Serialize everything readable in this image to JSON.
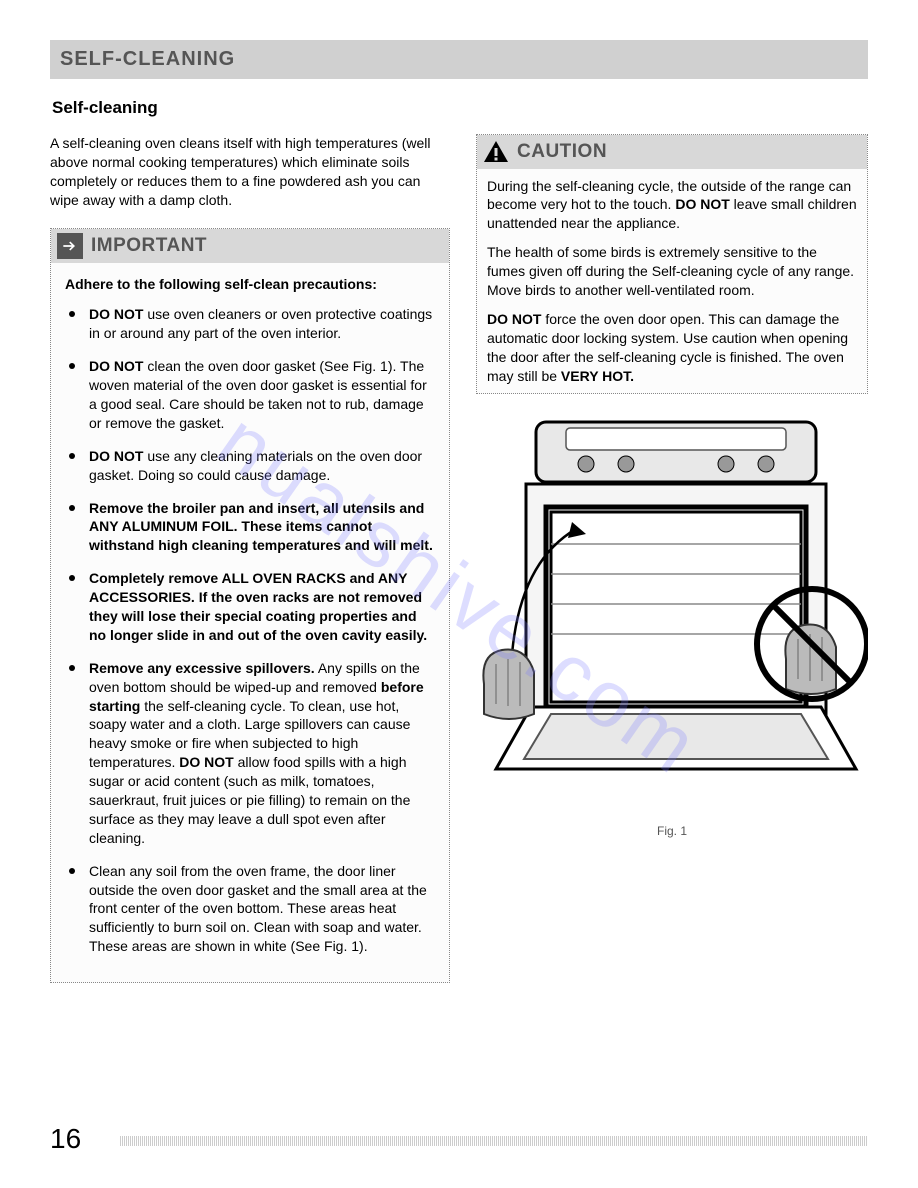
{
  "section_title": "SELF-CLEANING",
  "subtitle": "Self-cleaning",
  "intro": "A self-cleaning oven cleans itself with high temperatures (well above normal cooking temperatures) which eliminate soils completely or reduces them to a fine powdered ash you can wipe away with a damp cloth.",
  "important": {
    "header": "IMPORTANT",
    "subhead": "Adhere to the following self-clean precautions:",
    "items": [
      "<b>DO NOT</b> use oven cleaners or oven protective coatings in or around any part of the oven interior.",
      "<b>DO NOT</b> clean the oven door gasket (See Fig. 1). The woven material of the oven door gasket is essential for a good seal. Care should be taken not to rub, damage or remove the gasket.",
      "<b>DO NOT</b> use any cleaning materials on the oven door gasket. Doing so could cause damage.",
      "<b>Remove the broiler pan and insert, all utensils and ANY ALUMINUM FOIL. These items cannot withstand high cleaning temperatures and will melt.</b>",
      "<b>Completely remove ALL OVEN RACKS and ANY ACCESSORIES.  If the oven racks are not removed they will lose their special coating properties and no longer slide in and out of the oven cavity easily.</b>",
      "<b>Remove any excessive spillovers.</b> Any spills on the oven bottom should be wiped-up and removed <b>before starting</b> the self-cleaning cycle. To clean, use hot, soapy water and a cloth. Large spillovers can cause heavy smoke or fire when subjected to high temperatures. <b>DO NOT</b> allow food spills with a high sugar or acid content (such as milk, tomatoes, sauerkraut, fruit juices or pie filling) to remain on the surface as they may leave a dull spot even after cleaning.",
      "Clean any soil from the oven frame, the door liner outside the oven door gasket and the small area at the front center of the oven bottom. These areas heat sufficiently to burn soil on. Clean with soap and water. These areas are shown in white (See Fig. 1)."
    ]
  },
  "caution": {
    "header": "CAUTION",
    "paragraphs": [
      "During the self-cleaning cycle, the outside of the range can become very hot to the touch. <b>DO NOT</b> leave small children unattended near the appliance.",
      "The health of some birds is extremely sensitive to the fumes given off during the Self-cleaning cycle of any range. Move birds to another well-ventilated room.",
      "<b>DO NOT</b> force the oven door open. This can damage the automatic door locking system. Use caution when opening the door after the self-cleaning cycle is finished. The oven may still be <b>VERY HOT.</b>"
    ]
  },
  "figure": {
    "caption": "Fig. 1"
  },
  "page_number": "16",
  "watermark": "nualshive.com",
  "colors": {
    "header_bg": "#d0d0d0",
    "header_text": "#555555",
    "box_border": "#888888",
    "text": "#000000"
  }
}
